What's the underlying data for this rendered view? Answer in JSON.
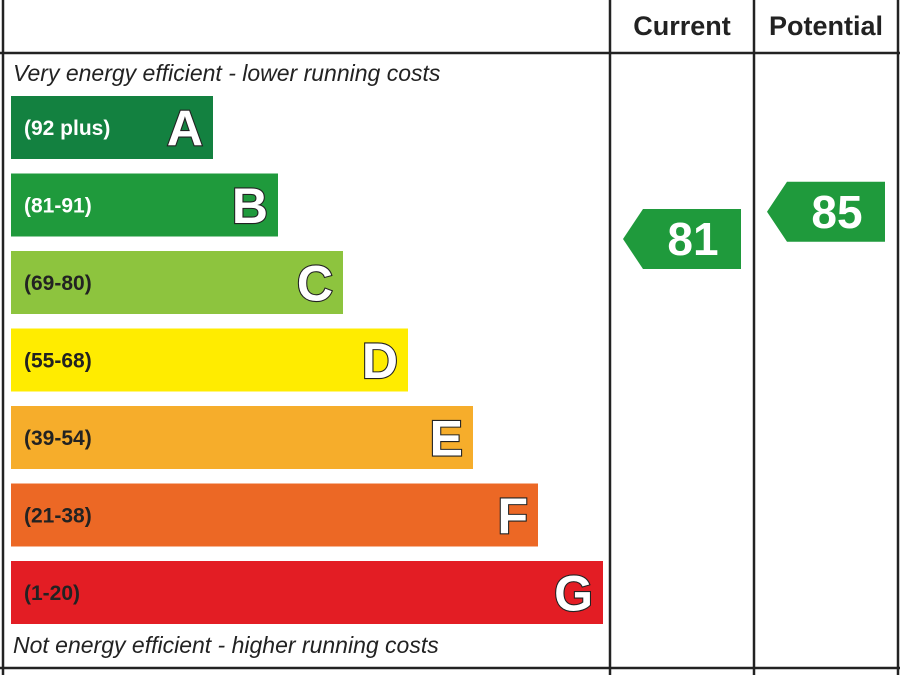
{
  "header": {
    "current_label": "Current",
    "potential_label": "Potential"
  },
  "notes": {
    "top": "Very energy efficient - lower running costs",
    "bottom": "Not energy efficient - higher running costs"
  },
  "chart_data": {
    "type": "bar",
    "bands": [
      {
        "letter": "A",
        "range": "(92 plus)",
        "min": 92,
        "max": null,
        "color": "#138140",
        "text_color": "#ffffff"
      },
      {
        "letter": "B",
        "range": "(81-91)",
        "min": 81,
        "max": 91,
        "color": "#1f9a3c",
        "text_color": "#ffffff"
      },
      {
        "letter": "C",
        "range": "(69-80)",
        "min": 69,
        "max": 80,
        "color": "#8dc43e",
        "text_color": "#222222"
      },
      {
        "letter": "D",
        "range": "(55-68)",
        "min": 55,
        "max": 68,
        "color": "#ffec00",
        "text_color": "#222222"
      },
      {
        "letter": "E",
        "range": "(39-54)",
        "min": 39,
        "max": 54,
        "color": "#f6ad2b",
        "text_color": "#222222"
      },
      {
        "letter": "F",
        "range": "(21-38)",
        "min": 21,
        "max": 38,
        "color": "#ec6825",
        "text_color": "#222222"
      },
      {
        "letter": "G",
        "range": "(1-20)",
        "min": 1,
        "max": 20,
        "color": "#e31d24",
        "text_color": "#222222"
      }
    ],
    "current": {
      "value": 81,
      "band": "B",
      "color": "#1f9a3c"
    },
    "potential": {
      "value": 85,
      "band": "B",
      "color": "#1f9a3c"
    }
  }
}
